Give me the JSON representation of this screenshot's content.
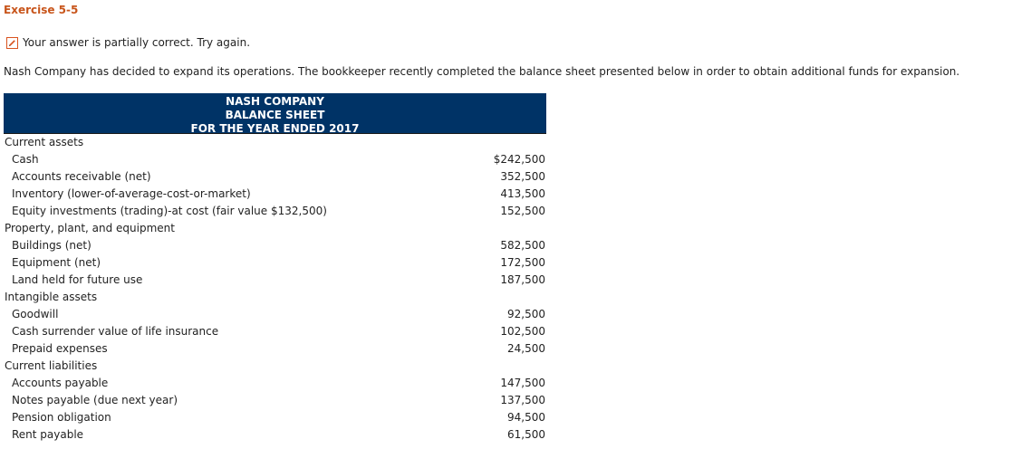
{
  "exercise": {
    "title": "Exercise 5-5"
  },
  "feedback": {
    "icon": "edit-icon",
    "text": "Your answer is partially correct.  Try again."
  },
  "intro": "Nash Company has decided to expand its operations. The bookkeeper recently completed the balance sheet presented below in order to obtain additional funds for expansion.",
  "balance_sheet": {
    "header_color": "#003366",
    "title_line1": "NASH COMPANY",
    "title_line2": "BALANCE SHEET",
    "title_line3": "FOR THE YEAR ENDED 2017",
    "rows": [
      {
        "type": "section",
        "label": "Current assets",
        "amount": ""
      },
      {
        "type": "item",
        "label": "Cash",
        "amount": "$242,500"
      },
      {
        "type": "item",
        "label": "Accounts receivable (net)",
        "amount": "352,500"
      },
      {
        "type": "item",
        "label": "Inventory (lower-of-average-cost-or-market)",
        "amount": "413,500"
      },
      {
        "type": "item",
        "label": "Equity investments (trading)-at cost (fair value $132,500)",
        "amount": "152,500"
      },
      {
        "type": "section",
        "label": "Property, plant, and equipment",
        "amount": ""
      },
      {
        "type": "item",
        "label": "Buildings (net)",
        "amount": "582,500"
      },
      {
        "type": "item",
        "label": "Equipment (net)",
        "amount": "172,500"
      },
      {
        "type": "item",
        "label": "Land held for future use",
        "amount": "187,500"
      },
      {
        "type": "section",
        "label": "Intangible assets",
        "amount": ""
      },
      {
        "type": "item",
        "label": "Goodwill",
        "amount": "92,500"
      },
      {
        "type": "item",
        "label": "Cash surrender value of life insurance",
        "amount": "102,500"
      },
      {
        "type": "item",
        "label": "Prepaid expenses",
        "amount": "24,500"
      },
      {
        "type": "section",
        "label": "Current liabilities",
        "amount": ""
      },
      {
        "type": "item",
        "label": "Accounts payable",
        "amount": "147,500"
      },
      {
        "type": "item",
        "label": "Notes payable (due next year)",
        "amount": "137,500"
      },
      {
        "type": "item",
        "label": "Pension obligation",
        "amount": "94,500"
      },
      {
        "type": "item",
        "label": "Rent payable",
        "amount": "61,500"
      }
    ]
  }
}
